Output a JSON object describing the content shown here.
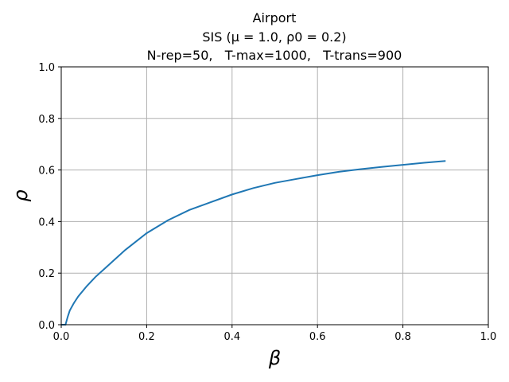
{
  "chart_data": {
    "type": "line",
    "title_lines": [
      "Airport",
      "SIS (μ = 1.0, ρ0 = 0.2)",
      "N-rep=50,   T-max=1000,   T-trans=900"
    ],
    "xlabel": "β",
    "ylabel": "ρ",
    "xlim": [
      0.0,
      1.0
    ],
    "ylim": [
      0.0,
      1.0
    ],
    "xticks": [
      "0.0",
      "0.2",
      "0.4",
      "0.6",
      "0.8",
      "1.0"
    ],
    "yticks": [
      "0.0",
      "0.2",
      "0.4",
      "0.6",
      "0.8",
      "1.0"
    ],
    "grid": true,
    "line_color": "#1f77b4",
    "series": [
      {
        "x": [
          0.0,
          0.01,
          0.015,
          0.02,
          0.03,
          0.04,
          0.05,
          0.06,
          0.08,
          0.1,
          0.12,
          0.15,
          0.2,
          0.25,
          0.3,
          0.35,
          0.4,
          0.45,
          0.5,
          0.55,
          0.6,
          0.65,
          0.7,
          0.75,
          0.8,
          0.85,
          0.9
        ],
        "y": [
          0.0,
          0.0,
          0.03,
          0.055,
          0.085,
          0.11,
          0.13,
          0.15,
          0.185,
          0.215,
          0.245,
          0.29,
          0.355,
          0.405,
          0.445,
          0.475,
          0.505,
          0.53,
          0.55,
          0.565,
          0.58,
          0.593,
          0.603,
          0.612,
          0.62,
          0.628,
          0.635
        ]
      }
    ]
  }
}
